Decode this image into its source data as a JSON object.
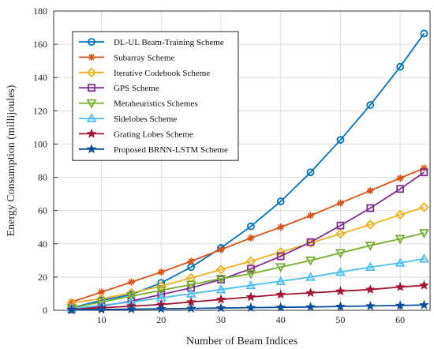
{
  "chart_data": {
    "type": "line",
    "title": "",
    "xlabel": "Number of Beam Indices",
    "ylabel": "Energy Consumption (millijoules)",
    "xlim": [
      2,
      65
    ],
    "ylim": [
      0,
      180
    ],
    "xticks": [
      10,
      20,
      30,
      40,
      50,
      60
    ],
    "yticks": [
      0,
      20,
      40,
      60,
      80,
      100,
      120,
      140,
      160,
      180
    ],
    "grid": true,
    "legend_position": "top-left",
    "x": [
      5,
      10,
      15,
      20,
      25,
      30,
      35,
      40,
      45,
      50,
      55,
      60,
      64
    ],
    "series": [
      {
        "name": "DL-UL Beam-Training Scheme",
        "color": "#0072BD",
        "marker": "circle",
        "values": [
          1.5,
          6,
          9.5,
          16.5,
          26,
          37.5,
          50.5,
          65.5,
          83,
          102.5,
          123.5,
          146.5,
          166.5
        ]
      },
      {
        "name": "Subarray Scheme",
        "color": "#D95319",
        "marker": "asterisk",
        "values": [
          5,
          11,
          17,
          23,
          29.5,
          36.5,
          43.5,
          50,
          57,
          64.5,
          72,
          79.5,
          85.5
        ]
      },
      {
        "name": "Iterative Codebook Scheme",
        "color": "#EDB120",
        "marker": "diamond",
        "values": [
          4.5,
          7,
          10.5,
          14.5,
          19.5,
          24.5,
          29.5,
          35,
          40.5,
          46,
          51.5,
          57.5,
          62
        ]
      },
      {
        "name": "GPS Scheme",
        "color": "#7E2F8E",
        "marker": "square",
        "values": [
          0.5,
          2.5,
          5.5,
          9.5,
          13.5,
          18.5,
          25,
          32.5,
          41,
          51,
          61.5,
          73,
          83
        ]
      },
      {
        "name": "Metaheuristics Schemes",
        "color": "#77AC30",
        "marker": "triangle-down",
        "values": [
          1.5,
          5,
          8.5,
          12,
          15.5,
          19,
          22,
          26,
          30,
          34.5,
          39,
          43,
          46.5
        ]
      },
      {
        "name": "Sidelobes Scheme",
        "color": "#4DBEEE",
        "marker": "triangle-up",
        "values": [
          1,
          3,
          5,
          7.5,
          10,
          12.5,
          15,
          17.5,
          20,
          23,
          26,
          28.5,
          31
        ]
      },
      {
        "name": "Grating Lobes Scheme",
        "color": "#A2142F",
        "marker": "star",
        "values": [
          0.5,
          1.5,
          2.5,
          3.5,
          5,
          6.5,
          8,
          9.5,
          10.5,
          11.5,
          12.5,
          14,
          15
        ]
      },
      {
        "name": "Proposed BRNN-LSTM Scheme",
        "color": "#0B4F9C",
        "marker": "star",
        "values": [
          0.2,
          0.5,
          0.7,
          0.9,
          1.1,
          1.4,
          1.6,
          1.8,
          2.0,
          2.3,
          2.6,
          2.9,
          3.2
        ]
      }
    ]
  }
}
